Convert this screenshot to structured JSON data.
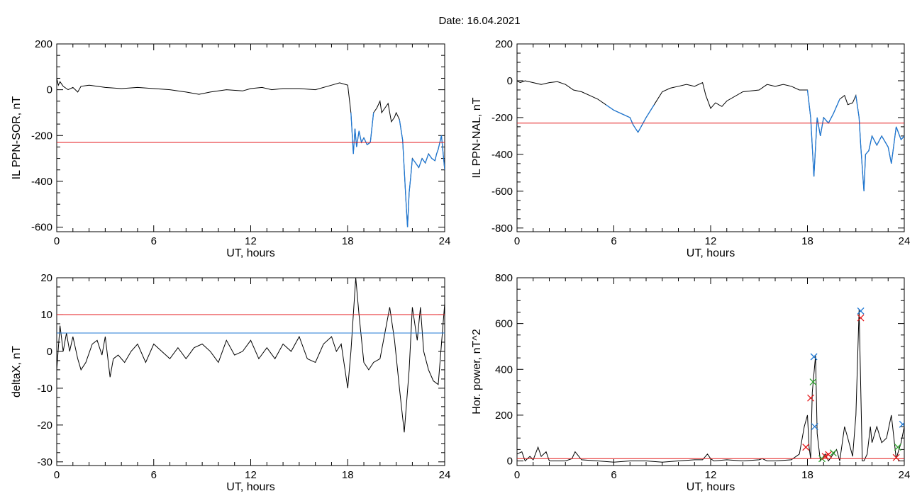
{
  "page_title": "Date:  16.04.2021",
  "colors": {
    "axes": "#000000",
    "series": "#000000",
    "threshold_red": "#e41a1c",
    "threshold_blue": "#1f78d4",
    "marker_green": "#2ca02c"
  },
  "chart_data": [
    {
      "type": "line",
      "ylabel": "IL PPN-SOR, nT",
      "xlabel": "UT, hours",
      "xlim": [
        0,
        24
      ],
      "ylim": [
        -620,
        200
      ],
      "xticks": [
        0,
        6,
        12,
        18,
        24
      ],
      "yticks": [
        -600,
        -400,
        -200,
        0,
        200
      ],
      "grid": false,
      "hlines": [
        {
          "y": -230,
          "color": "red"
        }
      ],
      "highlight_color": "blue",
      "highlight_threshold": -150,
      "series": [
        {
          "x": [
            0,
            0.1,
            0.2,
            0.4,
            0.7,
            1.0,
            1.3,
            1.5,
            2.0,
            3.0,
            4.0,
            5.0,
            6.0,
            7.0,
            8.0,
            8.8,
            9.5,
            10.5,
            11.5,
            12.0,
            12.7,
            13.3,
            14.0,
            15.0,
            16.0,
            17.0,
            17.5,
            18.0,
            18.2,
            18.35,
            18.45,
            18.55,
            18.7,
            18.85,
            19.0,
            19.2,
            19.4,
            19.6,
            19.8,
            20.0,
            20.1,
            20.3,
            20.5,
            20.7,
            20.9,
            21.0,
            21.2,
            21.4,
            21.5,
            21.6,
            21.7,
            21.8,
            21.9,
            22.0,
            22.2,
            22.4,
            22.6,
            22.8,
            23.0,
            23.2,
            23.4,
            23.5,
            23.6,
            23.8,
            24.0
          ],
          "y": [
            50,
            20,
            35,
            15,
            0,
            10,
            -10,
            15,
            20,
            10,
            5,
            10,
            5,
            0,
            -10,
            -20,
            -10,
            0,
            -5,
            5,
            10,
            0,
            5,
            5,
            0,
            20,
            30,
            20,
            -100,
            -280,
            -170,
            -250,
            -180,
            -230,
            -210,
            -240,
            -230,
            -100,
            -80,
            -50,
            -100,
            -80,
            -60,
            -140,
            -120,
            -100,
            -130,
            -220,
            -350,
            -480,
            -600,
            -450,
            -380,
            -300,
            -320,
            -340,
            -300,
            -320,
            -280,
            -300,
            -310,
            -280,
            -260,
            -200,
            -350
          ]
        }
      ]
    },
    {
      "type": "line",
      "ylabel": "IL PPN-NAL, nT",
      "xlabel": "UT, hours",
      "xlim": [
        0,
        24
      ],
      "ylim": [
        -820,
        200
      ],
      "xticks": [
        0,
        6,
        12,
        18,
        24
      ],
      "yticks": [
        -800,
        -600,
        -400,
        -200,
        0,
        200
      ],
      "grid": false,
      "hlines": [
        {
          "y": -230,
          "color": "red"
        }
      ],
      "highlight_color": "blue",
      "highlight_threshold": -150,
      "series": [
        {
          "x": [
            0,
            0.2,
            0.5,
            1.0,
            1.5,
            2.0,
            2.5,
            3.0,
            3.5,
            4.0,
            4.5,
            5.0,
            5.5,
            6.0,
            6.5,
            7.0,
            7.2,
            7.5,
            8.0,
            8.5,
            9.0,
            9.5,
            10.0,
            10.5,
            11.0,
            11.5,
            11.7,
            12.0,
            12.3,
            12.7,
            13.0,
            14.0,
            15.0,
            15.5,
            16.0,
            16.5,
            17.0,
            17.5,
            18.0,
            18.2,
            18.4,
            18.6,
            18.8,
            19.0,
            19.3,
            19.6,
            20.0,
            20.3,
            20.5,
            20.8,
            21.0,
            21.2,
            21.3,
            21.5,
            21.6,
            21.8,
            22.0,
            22.3,
            22.6,
            23.0,
            23.2,
            23.5,
            23.8,
            24.0
          ],
          "y": [
            0,
            -10,
            0,
            -10,
            -20,
            -10,
            -5,
            -20,
            -50,
            -60,
            -80,
            -100,
            -130,
            -160,
            -180,
            -200,
            -240,
            -280,
            -200,
            -130,
            -60,
            -40,
            -30,
            -20,
            -30,
            -10,
            -80,
            -150,
            -120,
            -140,
            -110,
            -60,
            -50,
            -20,
            -30,
            -20,
            -30,
            -50,
            -50,
            -200,
            -520,
            -200,
            -300,
            -200,
            -230,
            -180,
            -100,
            -80,
            -130,
            -120,
            -80,
            -200,
            -350,
            -600,
            -400,
            -380,
            -300,
            -350,
            -300,
            -360,
            -450,
            -250,
            -320,
            -300
          ]
        }
      ]
    },
    {
      "type": "line",
      "ylabel": "deltaX, nT",
      "xlabel": "UT, hours",
      "xlim": [
        0,
        24
      ],
      "ylim": [
        -31,
        20
      ],
      "xticks": [
        0,
        6,
        12,
        18,
        24
      ],
      "yticks": [
        -30,
        -20,
        -10,
        0,
        10,
        20
      ],
      "grid": false,
      "hlines": [
        {
          "y": 10,
          "color": "red"
        },
        {
          "y": 5,
          "color": "blue"
        }
      ],
      "series": [
        {
          "x": [
            0,
            0.2,
            0.4,
            0.6,
            0.8,
            1.0,
            1.3,
            1.5,
            1.8,
            2.2,
            2.5,
            2.8,
            3.0,
            3.3,
            3.5,
            3.8,
            4.2,
            4.6,
            5.0,
            5.5,
            6.0,
            6.5,
            7.0,
            7.5,
            8.0,
            8.5,
            9.0,
            9.5,
            10.0,
            10.5,
            11.0,
            11.5,
            12.0,
            12.5,
            13.0,
            13.5,
            14.0,
            14.5,
            15.0,
            15.5,
            16.0,
            16.5,
            17.0,
            17.3,
            17.6,
            18.0,
            18.2,
            18.5,
            18.7,
            19.0,
            19.3,
            19.6,
            20.0,
            20.3,
            20.6,
            20.9,
            21.2,
            21.5,
            21.8,
            22.0,
            22.3,
            22.5,
            22.7,
            23.0,
            23.3,
            23.6,
            24.0
          ],
          "y": [
            -5,
            7,
            0,
            5,
            0,
            4,
            -2,
            -5,
            -3,
            2,
            3,
            -1,
            4,
            -7,
            -2,
            -1,
            -3,
            0,
            2,
            -3,
            2,
            0,
            -2,
            1,
            -2,
            1,
            2,
            0,
            -3,
            3,
            -1,
            0,
            3,
            -2,
            1,
            -2,
            2,
            0,
            4,
            -2,
            -3,
            2,
            4,
            0,
            2,
            -10,
            0,
            20,
            10,
            -3,
            -5,
            -3,
            -2,
            5,
            12,
            3,
            -10,
            -22,
            -5,
            12,
            3,
            12,
            0,
            -5,
            -8,
            -9,
            13
          ]
        }
      ]
    },
    {
      "type": "line",
      "ylabel": "Hor. power, nT^2",
      "xlabel": "UT, hours",
      "xlim": [
        0,
        24
      ],
      "ylim": [
        -20,
        800
      ],
      "xticks": [
        0,
        6,
        12,
        18,
        24
      ],
      "yticks": [
        0,
        200,
        400,
        600,
        800
      ],
      "grid": false,
      "hlines": [
        {
          "y": 10,
          "color": "red"
        }
      ],
      "series": [
        {
          "x": [
            0,
            0.3,
            0.5,
            0.8,
            1.0,
            1.3,
            1.5,
            1.8,
            2.0,
            3.0,
            3.4,
            3.6,
            4.0,
            5.0,
            6.0,
            7.0,
            8.0,
            9.0,
            10.0,
            11.0,
            11.5,
            11.8,
            12.0,
            12.2,
            13.0,
            14.0,
            15.0,
            15.2,
            15.5,
            16.0,
            17.0,
            17.5,
            17.8,
            18.0,
            18.1,
            18.2,
            18.3,
            18.5,
            18.6,
            18.8,
            18.9,
            19.1,
            19.3,
            19.5,
            19.8,
            20.0,
            20.3,
            20.5,
            20.8,
            21.0,
            21.2,
            21.4,
            21.5,
            21.7,
            21.9,
            22.0,
            22.3,
            22.6,
            22.9,
            23.2,
            23.5,
            23.8,
            24.0
          ],
          "y": [
            30,
            40,
            0,
            20,
            5,
            60,
            20,
            40,
            0,
            0,
            10,
            40,
            5,
            0,
            -5,
            0,
            0,
            -5,
            0,
            5,
            5,
            30,
            10,
            0,
            5,
            0,
            5,
            10,
            0,
            0,
            5,
            30,
            150,
            200,
            60,
            10,
            300,
            460,
            120,
            0,
            10,
            30,
            0,
            20,
            50,
            0,
            150,
            100,
            20,
            200,
            660,
            0,
            0,
            30,
            150,
            80,
            150,
            80,
            100,
            200,
            10,
            80,
            150
          ]
        }
      ],
      "markers": [
        {
          "x": 17.9,
          "y": 60,
          "color": "red"
        },
        {
          "x": 18.2,
          "y": 275,
          "color": "red"
        },
        {
          "x": 18.35,
          "y": 345,
          "color": "green"
        },
        {
          "x": 18.4,
          "y": 455,
          "color": "blue"
        },
        {
          "x": 18.45,
          "y": 150,
          "color": "blue"
        },
        {
          "x": 18.9,
          "y": 10,
          "color": "green"
        },
        {
          "x": 19.1,
          "y": 20,
          "color": "red"
        },
        {
          "x": 19.3,
          "y": 28,
          "color": "red"
        },
        {
          "x": 19.6,
          "y": 35,
          "color": "green"
        },
        {
          "x": 21.3,
          "y": 655,
          "color": "blue"
        },
        {
          "x": 21.3,
          "y": 625,
          "color": "red"
        },
        {
          "x": 23.5,
          "y": 15,
          "color": "red"
        },
        {
          "x": 23.6,
          "y": 60,
          "color": "green"
        },
        {
          "x": 23.9,
          "y": 160,
          "color": "blue"
        }
      ]
    }
  ]
}
